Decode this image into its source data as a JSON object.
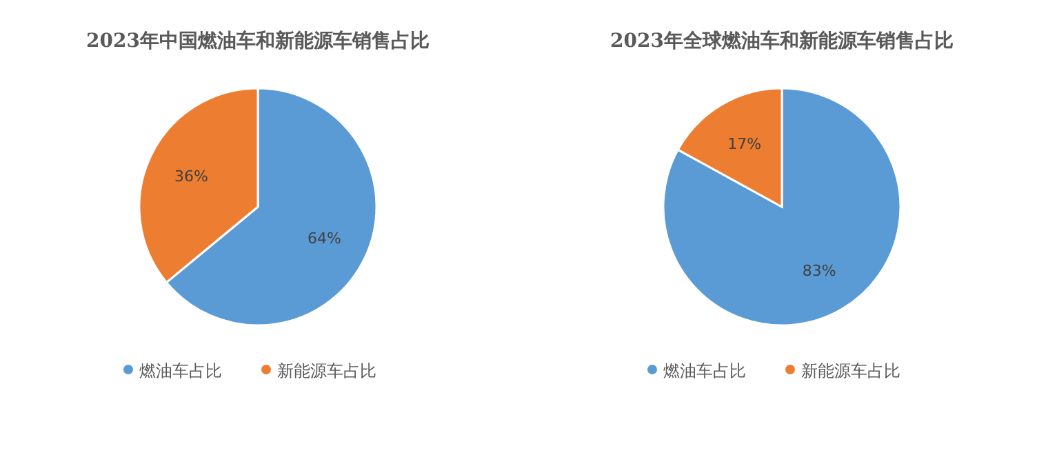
{
  "chart_data": [
    {
      "type": "pie",
      "title": "2023年中国燃油车和新能源车销售占比",
      "categories": [
        "燃油车占比",
        "新能源车占比"
      ],
      "values": [
        64,
        36
      ],
      "colors": [
        "#5b9bd5",
        "#ed7d31"
      ],
      "value_labels": [
        "64%",
        "36%"
      ],
      "legend": "bottom"
    },
    {
      "type": "pie",
      "title": "2023年全球燃油车和新能源车销售占比",
      "categories": [
        "燃油车占比",
        "新能源车占比"
      ],
      "values": [
        83,
        17
      ],
      "colors": [
        "#5b9bd5",
        "#ed7d31"
      ],
      "value_labels": [
        "83%",
        "17%"
      ],
      "legend": "bottom"
    }
  ]
}
